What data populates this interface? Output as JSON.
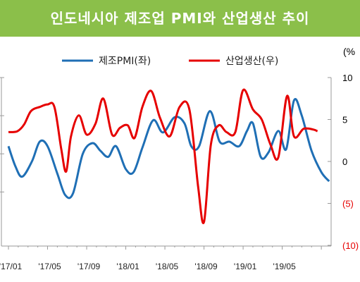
{
  "header": {
    "title": "인도네시아 제조업 PMI와 산업생산 추이",
    "bg_color": "#8bbf4a"
  },
  "chart_data": {
    "type": "line",
    "title": "인도네시아 제조업 PMI와 산업생산 추이",
    "y_unit_label": "(%",
    "x_ticks": [
      "'17/01",
      "'17/05",
      "'17/09",
      "'18/01",
      "'18/05",
      "'18/09",
      "'19/01",
      "'19/05"
    ],
    "right_axis": {
      "ylim": [
        -10,
        10
      ],
      "tick_values": [
        10,
        5,
        0,
        -5,
        -10
      ],
      "tick_labels": [
        "10",
        "5",
        "0",
        "(5)",
        "(10)"
      ],
      "tick_colors": [
        "#000000",
        "#000000",
        "#000000",
        "#e60000",
        "#e60000"
      ]
    },
    "legend": {
      "position": "top"
    },
    "series": [
      {
        "name": "제조PMI(좌)",
        "color": "#1f6fb5",
        "values": [
          [
            0,
            52.5
          ],
          [
            0.7,
            51.2
          ],
          [
            1.4,
            50.5
          ],
          [
            2.4,
            51.5
          ],
          [
            3.2,
            52.8
          ],
          [
            4.0,
            52.5
          ],
          [
            5.0,
            50.7
          ],
          [
            5.8,
            49.3
          ],
          [
            6.6,
            49.4
          ],
          [
            7.6,
            52.0
          ],
          [
            8.6,
            52.7
          ],
          [
            9.4,
            52.2
          ],
          [
            10.2,
            51.8
          ],
          [
            11.0,
            52.5
          ],
          [
            12.0,
            51.0
          ],
          [
            12.8,
            50.8
          ],
          [
            13.7,
            52.4
          ],
          [
            14.8,
            54.2
          ],
          [
            15.8,
            53.4
          ],
          [
            17.0,
            54.4
          ],
          [
            18.0,
            54.0
          ],
          [
            18.7,
            52.5
          ],
          [
            19.5,
            52.5
          ],
          [
            20.6,
            54.8
          ],
          [
            21.6,
            52.8
          ],
          [
            22.6,
            52.8
          ],
          [
            23.6,
            52.5
          ],
          [
            24.4,
            53.5
          ],
          [
            25.0,
            54.0
          ],
          [
            25.8,
            51.8
          ],
          [
            26.6,
            52.1
          ],
          [
            27.6,
            53.5
          ],
          [
            28.4,
            52.3
          ],
          [
            29.2,
            55.5
          ],
          [
            30.0,
            54.5
          ],
          [
            31.0,
            52.2
          ],
          [
            32.0,
            50.8
          ],
          [
            32.8,
            50.2
          ]
        ]
      },
      {
        "name": "산업생산(우)",
        "color": "#e60000",
        "values": [
          [
            0,
            3.5
          ],
          [
            0.9,
            3.6
          ],
          [
            1.6,
            4.4
          ],
          [
            2.3,
            6.0
          ],
          [
            3.2,
            6.5
          ],
          [
            4.0,
            6.8
          ],
          [
            4.7,
            6.5
          ],
          [
            5.4,
            1.5
          ],
          [
            5.9,
            -1.2
          ],
          [
            6.4,
            3.0
          ],
          [
            7.2,
            5.5
          ],
          [
            8.0,
            3.2
          ],
          [
            8.9,
            4.5
          ],
          [
            9.7,
            7.5
          ],
          [
            10.6,
            3.2
          ],
          [
            11.4,
            4.0
          ],
          [
            12.2,
            4.3
          ],
          [
            12.9,
            2.8
          ],
          [
            13.7,
            6.5
          ],
          [
            14.6,
            8.4
          ],
          [
            15.5,
            5.2
          ],
          [
            16.5,
            3.0
          ],
          [
            17.5,
            6.5
          ],
          [
            18.5,
            6.2
          ],
          [
            19.4,
            -3.0
          ],
          [
            20.0,
            -7.2
          ],
          [
            20.7,
            2.0
          ],
          [
            21.5,
            4.3
          ],
          [
            22.3,
            3.5
          ],
          [
            23.2,
            3.5
          ],
          [
            24.0,
            8.5
          ],
          [
            25.0,
            6.2
          ],
          [
            25.9,
            5.0
          ],
          [
            26.8,
            2.0
          ],
          [
            27.6,
            0.5
          ],
          [
            28.5,
            7.8
          ],
          [
            29.2,
            3.0
          ],
          [
            30.2,
            3.9
          ],
          [
            31.2,
            3.8
          ],
          [
            31.6,
            3.6
          ]
        ]
      }
    ]
  }
}
